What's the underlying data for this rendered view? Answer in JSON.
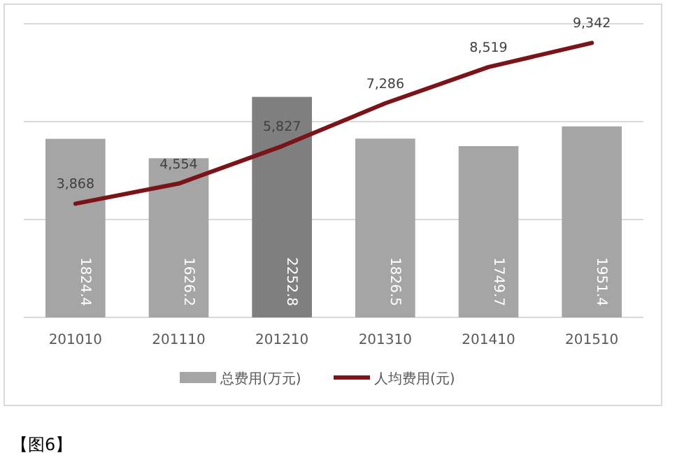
{
  "chart_data": {
    "type": "bar",
    "categories": [
      "201010",
      "201110",
      "201210",
      "201310",
      "201410",
      "201510"
    ],
    "series": [
      {
        "name": "总费用(万元)",
        "colors": [
          "#a5a5a5",
          "#a5a5a5",
          "#7f7f7f",
          "#a5a5a5",
          "#a5a5a5",
          "#a5a5a5"
        ],
        "color": "#a5a5a5",
        "values": [
          1824.4,
          1626.2,
          2252.8,
          1826.5,
          1749.7,
          1951.4
        ]
      },
      {
        "name": "人均费用(元)",
        "type": "line",
        "axis": "y2",
        "color": "#7b1418",
        "values": [
          3868,
          4554,
          5827,
          7286,
          8519,
          9342
        ],
        "value_labels": [
          "3,868",
          "4,554",
          "5,827",
          "7,286",
          "8,519",
          "9,342"
        ]
      }
    ],
    "ylim": [
      0,
      3000
    ],
    "yticks": [
      {
        "value": 0,
        "label": null
      },
      {
        "value": 1000,
        "label": null
      },
      {
        "value": 2000,
        "label": null
      },
      {
        "value": 3000,
        "label": null
      }
    ],
    "tick_labels": "x",
    "grid": "y",
    "legend": "bottom",
    "data_labels": true,
    "marker": "none",
    "line_style": "solid",
    "annotations": [
      "【图6】"
    ]
  }
}
